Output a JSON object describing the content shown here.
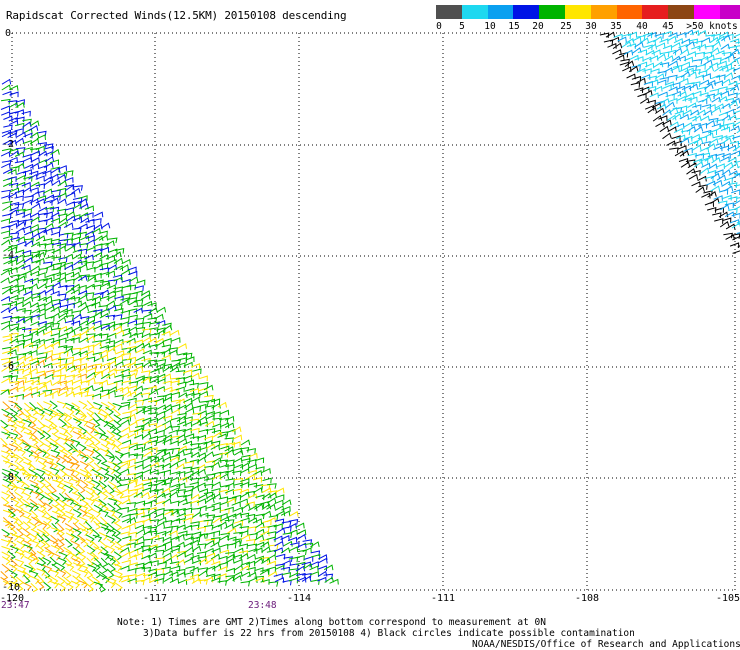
{
  "title": "Rapidscat Corrected Winds(12.5KM) 20150108 descending",
  "colorbar": {
    "colors": [
      "#505050",
      "#1ed8f0",
      "#0aa0f0",
      "#0014e6",
      "#00b400",
      "#ffe600",
      "#ffa000",
      "#ff6400",
      "#e61e1e",
      "#8c4614",
      "#ff00ff",
      "#c800c8",
      "#640096"
    ],
    "labels": [
      "0",
      "5",
      "10",
      "15",
      "20",
      "25",
      "30",
      "35",
      "40",
      "45",
      ">50 knots"
    ]
  },
  "axes": {
    "x_ticks": [
      "-120",
      "-117",
      "-114",
      "-111",
      "-108",
      "-105"
    ],
    "y_ticks": [
      "0",
      "-2",
      "-4",
      "-6",
      "-8",
      "-10"
    ]
  },
  "times": [
    "23:47",
    "23:48"
  ],
  "notes": [
    "Note: 1) Times are GMT 2)Times along bottom correspond to measurement at 0N",
    "3)Data buffer is 22 hrs from 20150108 4) Black circles indicate possible contamination",
    "NOAA/NESDIS/Office of Research and Applications"
  ]
}
